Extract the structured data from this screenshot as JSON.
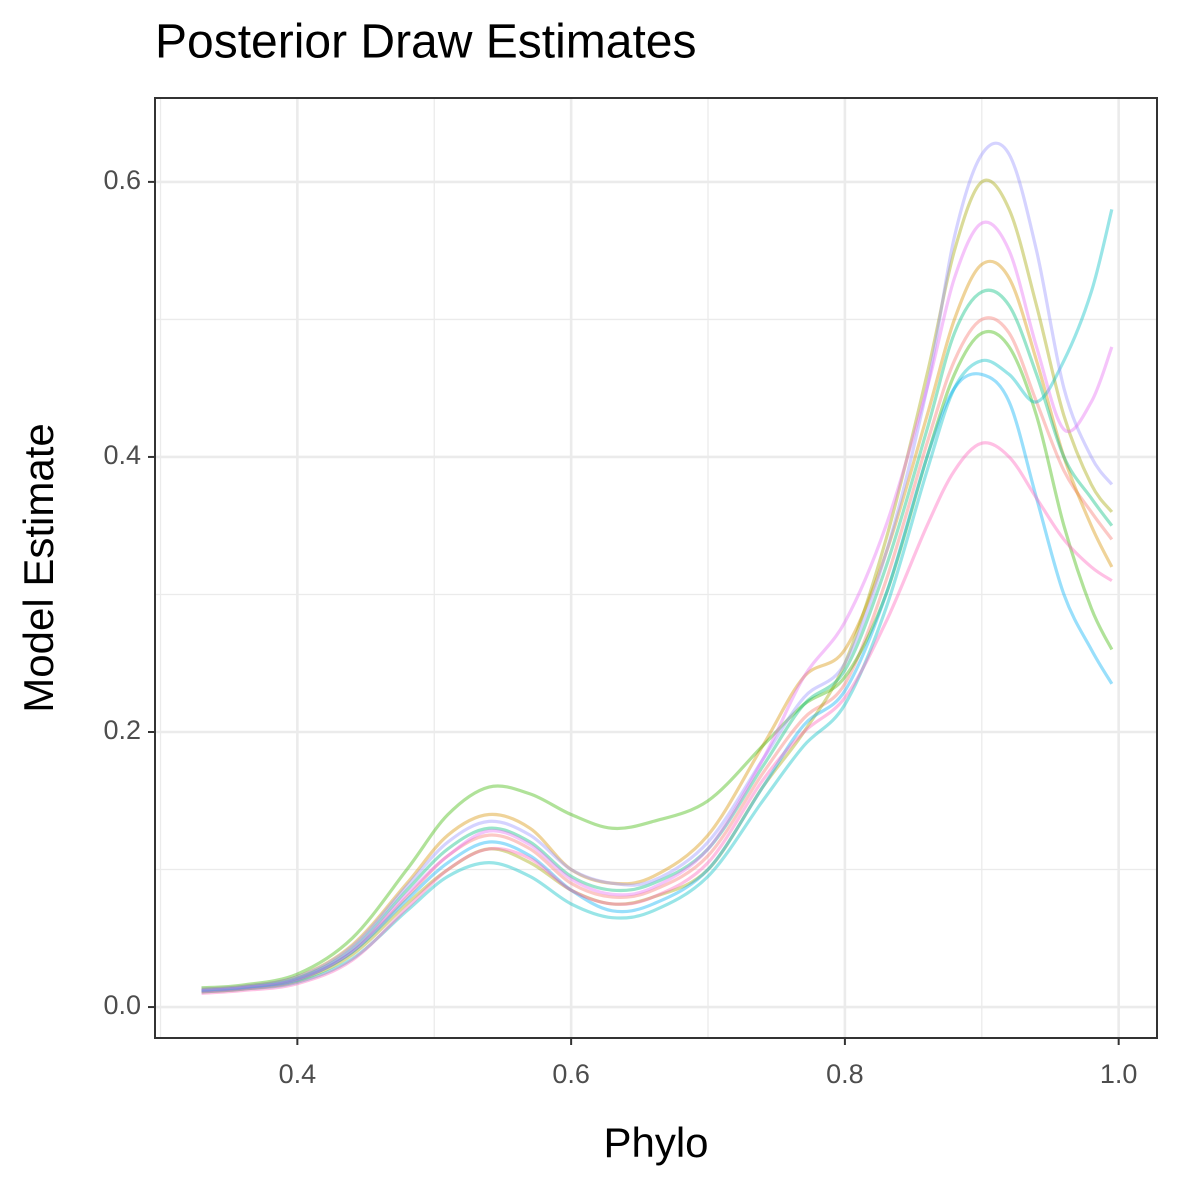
{
  "chart_data": {
    "type": "line",
    "title": "Posterior Draw Estimates",
    "x_label": "Phylo",
    "y_label": "Model Estimate",
    "xlim": [
      0.296,
      1.028
    ],
    "ylim": [
      -0.0225,
      0.661
    ],
    "xticks": [
      {
        "value": 0.4,
        "label": "0.4"
      },
      {
        "value": 0.6,
        "label": "0.6"
      },
      {
        "value": 0.8,
        "label": "0.8"
      },
      {
        "value": 1.0,
        "label": "1.0"
      }
    ],
    "yticks": [
      {
        "value": 0.0,
        "label": "0.0"
      },
      {
        "value": 0.2,
        "label": "0.2"
      },
      {
        "value": 0.4,
        "label": "0.4"
      },
      {
        "value": 0.6,
        "label": "0.6"
      }
    ],
    "x_minor_grid": [
      0.3,
      0.5,
      0.7,
      0.9
    ],
    "y_minor_grid": [
      0.1,
      0.3,
      0.5
    ],
    "grid": true,
    "line_opacity": 0.4,
    "x": [
      0.33,
      0.36,
      0.4,
      0.44,
      0.48,
      0.51,
      0.54,
      0.57,
      0.6,
      0.63,
      0.66,
      0.7,
      0.74,
      0.77,
      0.8,
      0.83,
      0.86,
      0.88,
      0.9,
      0.92,
      0.94,
      0.96,
      0.98,
      0.995
    ],
    "series": [
      {
        "color": "#F8766D",
        "values": [
          0.012,
          0.014,
          0.02,
          0.04,
          0.08,
          0.11,
          0.125,
          0.115,
          0.09,
          0.08,
          0.085,
          0.11,
          0.17,
          0.21,
          0.235,
          0.31,
          0.41,
          0.47,
          0.5,
          0.49,
          0.44,
          0.39,
          0.36,
          0.34
        ]
      },
      {
        "color": "#D89000",
        "values": [
          0.013,
          0.015,
          0.022,
          0.045,
          0.09,
          0.125,
          0.14,
          0.13,
          0.1,
          0.09,
          0.095,
          0.125,
          0.19,
          0.24,
          0.26,
          0.33,
          0.43,
          0.5,
          0.54,
          0.53,
          0.47,
          0.4,
          0.35,
          0.32
        ]
      },
      {
        "color": "#A3A500",
        "values": [
          0.011,
          0.013,
          0.019,
          0.038,
          0.075,
          0.1,
          0.115,
          0.105,
          0.085,
          0.075,
          0.08,
          0.1,
          0.16,
          0.2,
          0.25,
          0.34,
          0.46,
          0.55,
          0.6,
          0.58,
          0.51,
          0.43,
          0.38,
          0.36
        ]
      },
      {
        "color": "#39B600",
        "values": [
          0.014,
          0.016,
          0.024,
          0.05,
          0.1,
          0.14,
          0.16,
          0.155,
          0.14,
          0.13,
          0.135,
          0.15,
          0.19,
          0.22,
          0.24,
          0.3,
          0.4,
          0.46,
          0.49,
          0.48,
          0.43,
          0.35,
          0.29,
          0.26
        ]
      },
      {
        "color": "#00BF7D",
        "values": [
          0.012,
          0.014,
          0.021,
          0.042,
          0.085,
          0.115,
          0.13,
          0.12,
          0.095,
          0.085,
          0.09,
          0.115,
          0.175,
          0.22,
          0.245,
          0.32,
          0.42,
          0.49,
          0.52,
          0.51,
          0.46,
          0.4,
          0.37,
          0.35
        ]
      },
      {
        "color": "#00BFC4",
        "values": [
          0.011,
          0.013,
          0.018,
          0.035,
          0.07,
          0.095,
          0.105,
          0.095,
          0.075,
          0.065,
          0.07,
          0.095,
          0.15,
          0.19,
          0.22,
          0.29,
          0.39,
          0.45,
          0.47,
          0.46,
          0.44,
          0.47,
          0.52,
          0.58
        ]
      },
      {
        "color": "#00B0F6",
        "values": [
          0.012,
          0.014,
          0.02,
          0.04,
          0.078,
          0.105,
          0.12,
          0.11,
          0.085,
          0.07,
          0.075,
          0.1,
          0.16,
          0.205,
          0.23,
          0.3,
          0.4,
          0.45,
          0.46,
          0.44,
          0.37,
          0.3,
          0.26,
          0.235
        ]
      },
      {
        "color": "#9590FF",
        "values": [
          0.013,
          0.015,
          0.022,
          0.044,
          0.088,
          0.12,
          0.135,
          0.125,
          0.1,
          0.09,
          0.092,
          0.12,
          0.18,
          0.225,
          0.25,
          0.33,
          0.45,
          0.56,
          0.62,
          0.62,
          0.55,
          0.45,
          0.4,
          0.38
        ]
      },
      {
        "color": "#E76BF3",
        "values": [
          0.012,
          0.014,
          0.02,
          0.041,
          0.082,
          0.11,
          0.128,
          0.118,
          0.093,
          0.082,
          0.087,
          0.115,
          0.18,
          0.24,
          0.28,
          0.35,
          0.45,
          0.53,
          0.57,
          0.55,
          0.48,
          0.42,
          0.44,
          0.48
        ]
      },
      {
        "color": "#FF62BC",
        "values": [
          0.01,
          0.012,
          0.017,
          0.034,
          0.072,
          0.1,
          0.115,
          0.108,
          0.085,
          0.075,
          0.08,
          0.105,
          0.165,
          0.2,
          0.225,
          0.28,
          0.35,
          0.39,
          0.41,
          0.4,
          0.37,
          0.34,
          0.32,
          0.31
        ]
      }
    ]
  }
}
